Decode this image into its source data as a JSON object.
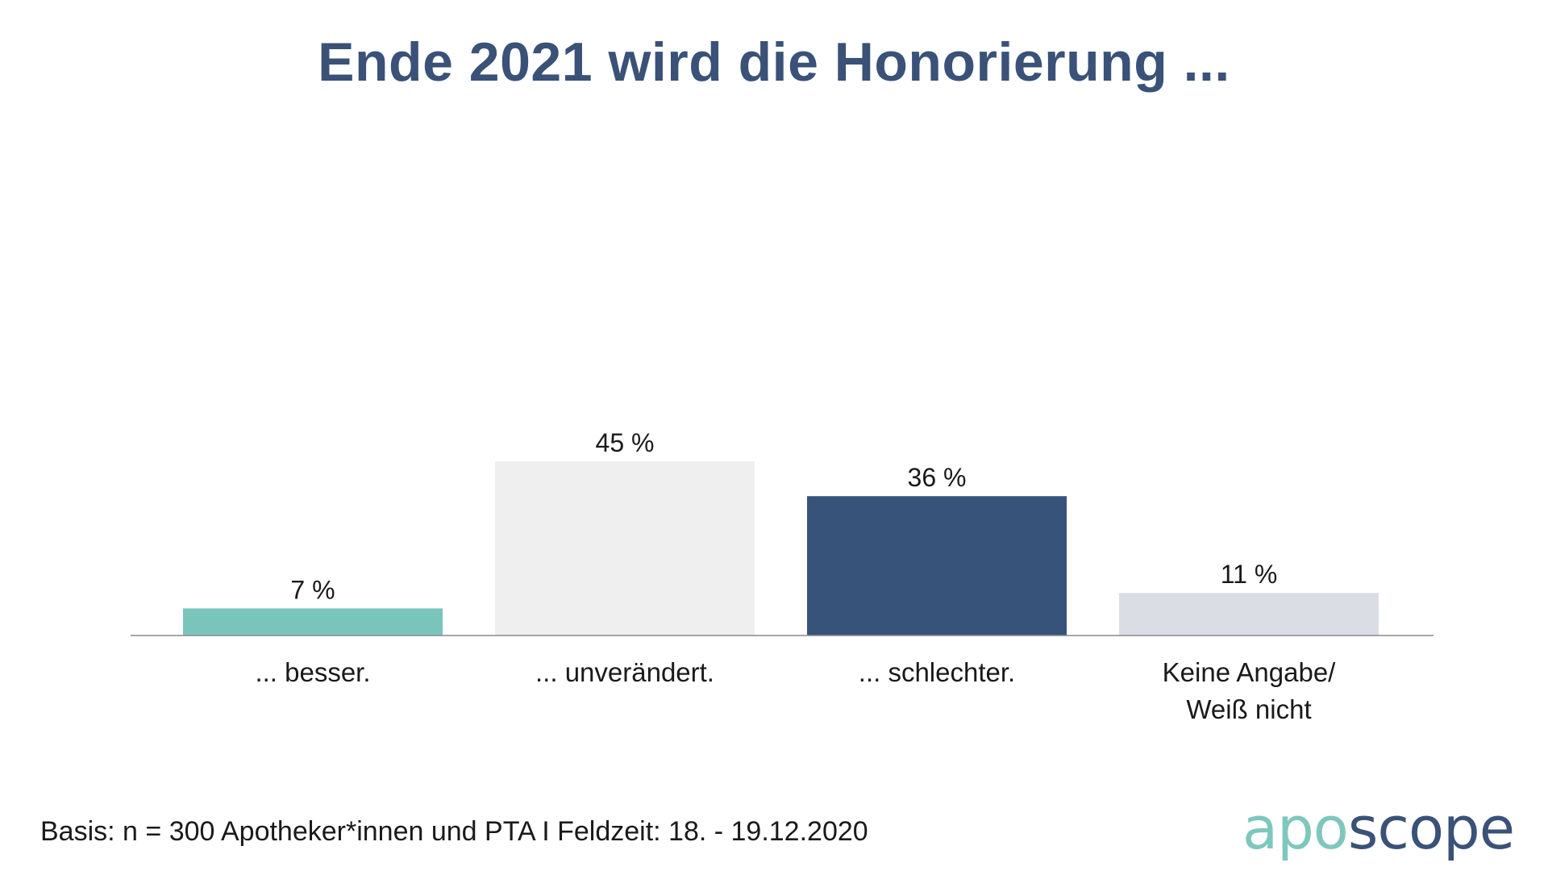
{
  "title": "Ende 2021 wird die Honorierung ...",
  "chart_data": {
    "type": "bar",
    "categories": [
      "... besser.",
      "... unverändert.",
      "... schlechter.",
      "Keine Angabe/ Weiß nicht"
    ],
    "category_lines": [
      [
        "... besser."
      ],
      [
        "... unverändert."
      ],
      [
        "... schlechter."
      ],
      [
        "Keine Angabe/",
        "Weiß nicht"
      ]
    ],
    "values": [
      7,
      45,
      36,
      11
    ],
    "value_labels": [
      "7 %",
      "45 %",
      "36 %",
      "11 %"
    ],
    "colors": [
      "#79c5bb",
      "#efefef",
      "#38537a",
      "#dadde3"
    ],
    "unit": "%",
    "ylim": [
      0,
      100
    ],
    "grid": false,
    "legend": "none",
    "xlabel": "",
    "ylabel": ""
  },
  "footnote": "Basis: n = 300 Apotheker*innen und PTA I Feldzeit: 18. - 19.12.2020",
  "logo": {
    "part1": "apo",
    "part2": "scope"
  }
}
